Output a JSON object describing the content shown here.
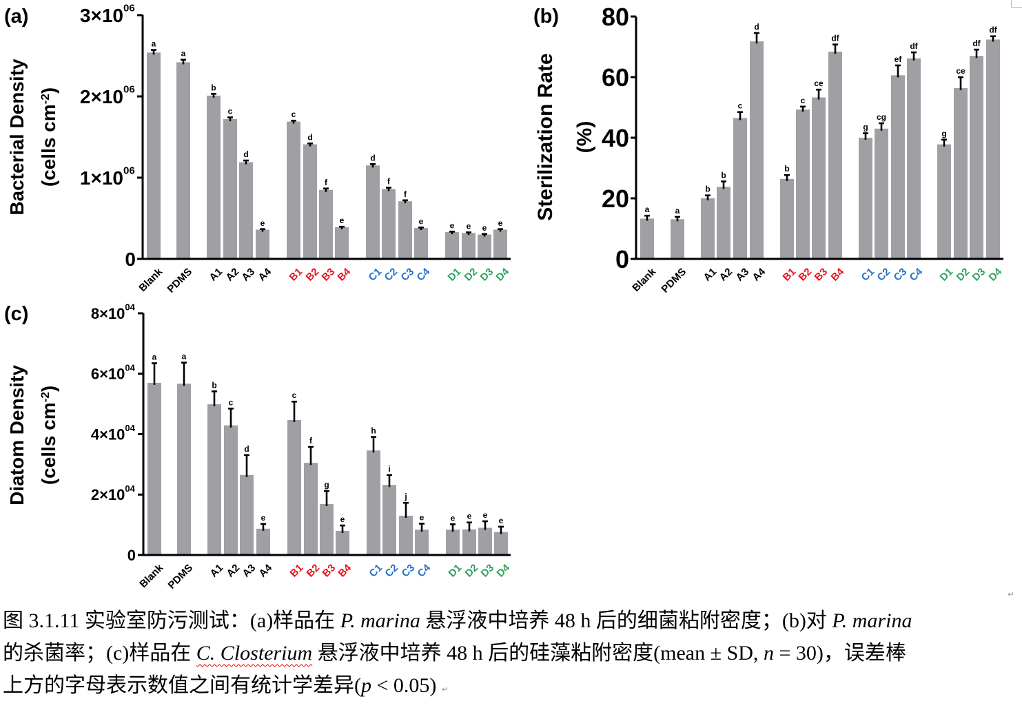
{
  "colors": {
    "bar": "#a0a0a4",
    "axis": "#000000",
    "group_black": "#000000",
    "group_red": "#e8141c",
    "group_blue": "#1f6fd1",
    "group_green": "#2ea35a"
  },
  "chart_data": [
    {
      "type": "bar",
      "panel": "(a)",
      "ylabel_line1": "Bacterial Density",
      "ylabel_line2": "(cells cm",
      "ylabel_sup": "-2",
      "ylabel_close": ")",
      "ylim": [
        0,
        3000000
      ],
      "yticks": [
        {
          "value": 0,
          "label": "0",
          "sup": ""
        },
        {
          "value": 1000000,
          "label": "1×10",
          "sup": "06"
        },
        {
          "value": 2000000,
          "label": "2×10",
          "sup": "06"
        },
        {
          "value": 3000000,
          "label": "3×10",
          "sup": "06"
        }
      ],
      "categories": [
        "Blank",
        "PDMS",
        "A1",
        "A2",
        "A3",
        "A4",
        "B1",
        "B2",
        "B3",
        "B4",
        "C1",
        "C2",
        "C3",
        "C4",
        "D1",
        "D2",
        "D3",
        "D4"
      ],
      "category_groups": [
        "black",
        "black",
        "black",
        "black",
        "black",
        "black",
        "red",
        "red",
        "red",
        "red",
        "blue",
        "blue",
        "blue",
        "blue",
        "green",
        "green",
        "green",
        "green"
      ],
      "values": [
        2540000,
        2420000,
        2010000,
        1720000,
        1190000,
        360000,
        1690000,
        1410000,
        850000,
        390000,
        1150000,
        860000,
        710000,
        380000,
        330000,
        320000,
        300000,
        360000
      ],
      "errors": [
        40000,
        40000,
        30000,
        30000,
        30000,
        15000,
        20000,
        20000,
        25000,
        15000,
        25000,
        25000,
        20000,
        15000,
        15000,
        15000,
        15000,
        15000
      ],
      "sig_letters": [
        "a",
        "a",
        "b",
        "c",
        "d",
        "e",
        "c",
        "d",
        "f",
        "e",
        "d",
        "f",
        "f",
        "e",
        "e",
        "e",
        "e",
        "e"
      ]
    },
    {
      "type": "bar",
      "panel": "(b)",
      "ylabel_line1": "Sterilization Rate",
      "ylabel_line2": "(%)",
      "ylim": [
        0,
        80
      ],
      "yticks": [
        {
          "value": 0,
          "label": "0",
          "sup": ""
        },
        {
          "value": 20,
          "label": "20",
          "sup": ""
        },
        {
          "value": 40,
          "label": "40",
          "sup": ""
        },
        {
          "value": 60,
          "label": "60",
          "sup": ""
        },
        {
          "value": 80,
          "label": "80",
          "sup": ""
        }
      ],
      "categories": [
        "Blank",
        "PDMS",
        "A1",
        "A2",
        "A3",
        "A4",
        "B1",
        "B2",
        "B3",
        "B4",
        "C1",
        "C2",
        "C3",
        "C4",
        "D1",
        "D2",
        "D3",
        "D4"
      ],
      "category_groups": [
        "black",
        "black",
        "black",
        "black",
        "black",
        "black",
        "red",
        "red",
        "red",
        "red",
        "blue",
        "blue",
        "blue",
        "blue",
        "green",
        "green",
        "green",
        "green"
      ],
      "values": [
        13.3,
        13.1,
        20.0,
        23.8,
        46.5,
        71.8,
        26.4,
        49.3,
        53.3,
        68.4,
        40.0,
        43.0,
        60.6,
        66.2,
        37.8,
        56.4,
        67.0,
        72.4
      ],
      "errors": [
        1.2,
        1.0,
        1.2,
        2.0,
        2.2,
        3.0,
        1.5,
        1.2,
        2.8,
        2.6,
        1.7,
        2.0,
        3.5,
        2.2,
        1.8,
        3.8,
        2.3,
        1.3
      ],
      "sig_letters": [
        "a",
        "a",
        "b",
        "b",
        "c",
        "d",
        "b",
        "c",
        "ce",
        "df",
        "g",
        "cg",
        "ef",
        "df",
        "g",
        "ce",
        "df",
        "df"
      ]
    },
    {
      "type": "bar",
      "panel": "(c)",
      "ylabel_line1": "Diatom Density",
      "ylabel_line2": "(cells cm",
      "ylabel_sup": "-2",
      "ylabel_close": ")",
      "ylim": [
        0,
        80000
      ],
      "yticks": [
        {
          "value": 0,
          "label": "0",
          "sup": ""
        },
        {
          "value": 20000,
          "label": "2×10",
          "sup": "04"
        },
        {
          "value": 40000,
          "label": "4×10",
          "sup": "04"
        },
        {
          "value": 60000,
          "label": "6×10",
          "sup": "04"
        },
        {
          "value": 80000,
          "label": "8×10",
          "sup": "04"
        }
      ],
      "categories": [
        "Blank",
        "PDMS",
        "A1",
        "A2",
        "A3",
        "A4",
        "B1",
        "B2",
        "B3",
        "B4",
        "C1",
        "C2",
        "C3",
        "C4",
        "D1",
        "D2",
        "D3",
        "D4"
      ],
      "category_groups": [
        "black",
        "black",
        "black",
        "black",
        "black",
        "black",
        "red",
        "red",
        "red",
        "red",
        "blue",
        "blue",
        "blue",
        "blue",
        "green",
        "green",
        "green",
        "green"
      ],
      "values": [
        57000,
        56700,
        49900,
        42900,
        26500,
        8700,
        44700,
        30500,
        16900,
        8000,
        34600,
        23200,
        13000,
        8400,
        8400,
        8500,
        9000,
        7600
      ],
      "errors": [
        6700,
        7200,
        4500,
        5800,
        6800,
        1800,
        6300,
        5500,
        4500,
        2000,
        4700,
        3500,
        4500,
        2200,
        2000,
        2500,
        2400,
        2000
      ],
      "sig_letters": [
        "a",
        "a",
        "b",
        "c",
        "d",
        "e",
        "c",
        "f",
        "g",
        "e",
        "h",
        "i",
        "j",
        "e",
        "e",
        "e",
        "e",
        "e"
      ]
    }
  ],
  "caption": {
    "line1_a": "图 3.1.11  实验室防污测试：(a)样品在 ",
    "line1_i1": "P. marina",
    "line1_b": " 悬浮液中培养 48 h 后的细菌粘附密度；(b)对 ",
    "line1_i2": "P. marina",
    "line2_a": "的杀菌率；(c)样品在 ",
    "line2_i1": "C. Closterium",
    "line2_b": " 悬浮液中培养 48 h 后的硅藻粘附密度(mean ± SD, ",
    "line2_i2": "n",
    "line2_c": " = 30)，误差棒",
    "line3_a": "上方的字母表示数值之间有统计学差异(",
    "line3_i1": "p",
    "line3_b": " < 0.05)",
    "para_mark": "↵"
  }
}
